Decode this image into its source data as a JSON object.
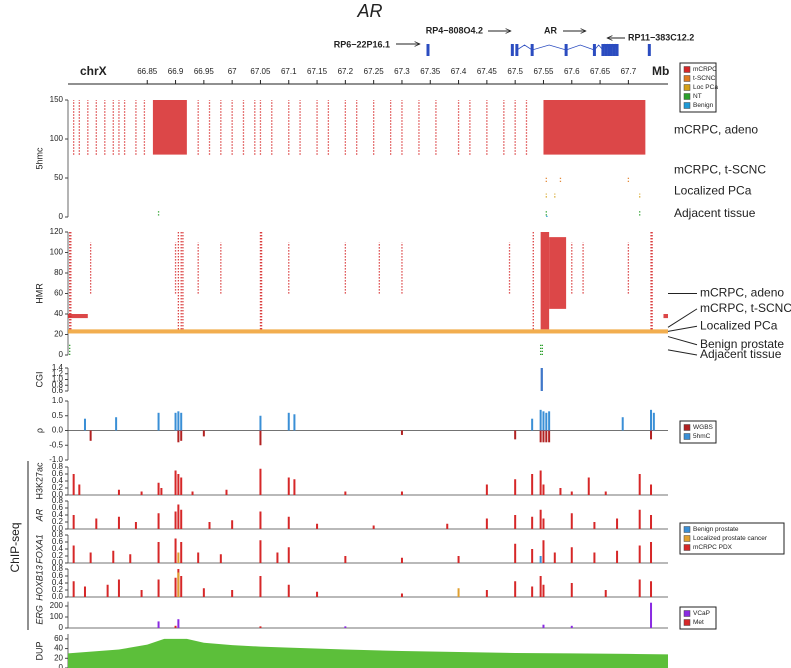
{
  "chart_data": [
    {
      "type": "gene",
      "title": "AR",
      "genes": [
        {
          "name": "RP6−22P16.1",
          "start": 67.346,
          "end": 67.349,
          "exons": [
            67.346
          ]
        },
        {
          "name": "RP4−808O4.2",
          "start": 67.495,
          "end": 67.497,
          "exons": [
            67.495
          ]
        },
        {
          "name": "AR",
          "start": 67.503,
          "end": 67.682,
          "exons": [
            67.503,
            67.53,
            67.59,
            67.64,
            67.655,
            67.66,
            67.665,
            67.67,
            67.675,
            67.68
          ]
        },
        {
          "name": "RP11−383C12.2",
          "start": 67.737,
          "end": 67.739,
          "exons": [
            67.737
          ]
        }
      ]
    },
    {
      "type": "axis",
      "chrom": "chrX",
      "unit": "Mb",
      "xlim": [
        66.71,
        67.77
      ],
      "xticks": [
        66.85,
        66.9,
        66.95,
        67,
        67.05,
        67.1,
        67.15,
        67.2,
        67.25,
        67.3,
        67.35,
        67.4,
        67.45,
        67.5,
        67.55,
        67.6,
        67.65,
        67.7
      ]
    },
    {
      "type": "raster",
      "ylabel": "5hmc",
      "ylim": [
        0,
        150
      ],
      "yticks": [
        0,
        50,
        100,
        150
      ],
      "legend": true,
      "track_labels": [
        {
          "text": "mCRPC, adeno",
          "y": 111
        },
        {
          "text": "mCRPC, t-SCNC",
          "y": 60
        },
        {
          "text": "Localized PCa",
          "y": 33
        },
        {
          "text": "Adjacent tissue",
          "y": 4
        }
      ],
      "series": [
        {
          "name": "mCRPC",
          "color": "#d62728",
          "rows": [
            80,
            150
          ],
          "x": [
            66.72,
            66.73,
            66.745,
            66.76,
            66.775,
            66.79,
            66.8,
            66.81,
            66.83,
            66.845,
            66.94,
            66.96,
            66.98,
            67.0,
            67.02,
            67.04,
            67.05,
            67.07,
            67.1,
            67.12,
            67.15,
            67.17,
            67.2,
            67.22,
            67.25,
            67.28,
            67.3,
            67.33,
            67.36,
            67.4,
            67.42,
            67.45,
            67.48,
            67.5,
            67.52,
            [
              66.86,
              66.92
            ],
            [
              67.55,
              67.73
            ]
          ]
        },
        {
          "name": "t-SCNC",
          "color": "#e07b20",
          "rows": [
            45,
            52
          ],
          "x": [
            67.555,
            67.58,
            67.7
          ]
        },
        {
          "name": "Loc PCa",
          "color": "#d4a017",
          "rows": [
            25,
            30
          ],
          "x": [
            67.555,
            67.57,
            67.72
          ]
        },
        {
          "name": "NT",
          "color": "#2ca02c",
          "rows": [
            2,
            8
          ],
          "x": [
            66.87,
            67.555,
            67.72
          ]
        },
        {
          "name": "Benign",
          "color": "#1f9ad6",
          "rows": [
            0,
            3
          ],
          "x": [
            67.556
          ]
        }
      ]
    },
    {
      "type": "raster",
      "ylabel": "HMR",
      "ylim": [
        0,
        120
      ],
      "yticks": [
        0,
        20,
        40,
        60,
        80,
        100,
        120
      ],
      "track_labels": [
        {
          "text": "mCRPC, adeno",
          "y": 60,
          "at": 60
        },
        {
          "text": "mCRPC, t-SCNC",
          "y": 45,
          "at": 27
        },
        {
          "text": "Localized PCa",
          "y": 28,
          "at": 23
        },
        {
          "text": "Benign prostate",
          "y": 10,
          "at": 18
        },
        {
          "text": "Adjacent tissue",
          "y": 0,
          "at": 5
        }
      ],
      "series": [
        {
          "color": "#d62728",
          "rows": [
            25,
            120
          ],
          "x": [
            66.713,
            66.715,
            66.905,
            66.91,
            66.913,
            67.05,
            67.052,
            67.532,
            67.74,
            67.742,
            [
              67.545,
              67.56
            ]
          ]
        },
        {
          "color": "#d62728",
          "rows": [
            60,
            110
          ],
          "x": [
            66.75,
            66.9,
            66.94,
            66.98,
            67.1,
            67.2,
            67.26,
            67.3,
            67.49,
            67.6,
            67.62,
            67.7
          ]
        },
        {
          "color": "#d62728",
          "rows": [
            45,
            115
          ],
          "x": [
            [
              67.56,
              67.59
            ]
          ]
        },
        {
          "color": "#d62728",
          "rows": [
            36,
            40
          ],
          "x": [
            [
              66.71,
              66.745
            ],
            [
              67.762,
              67.77
            ]
          ]
        },
        {
          "color": "#f0a030",
          "rows": [
            21,
            25
          ],
          "x": [
            [
              66.71,
              67.77
            ]
          ]
        },
        {
          "color": "#2ca02c",
          "rows": [
            0,
            10
          ],
          "x": [
            66.713,
            67.545,
            67.548
          ]
        }
      ]
    },
    {
      "type": "raster",
      "ylabel": "CGI",
      "ylim": [
        0.6,
        1.4
      ],
      "yticks": [
        0.6,
        0.8,
        {
          "value": 1,
          "label": "1.0"
        },
        1.2,
        1.4
      ],
      "series": [
        {
          "color": "#1f5fbf",
          "rows": [
            0.6,
            1.4
          ],
          "x": [
            [
              67.545,
              67.549
            ]
          ]
        }
      ]
    },
    {
      "type": "bar",
      "ylabel": "ρ",
      "ylim": [
        -1,
        1
      ],
      "yticks": [
        {
          "value": -1,
          "label": "-1.0"
        },
        -0.5,
        {
          "value": 0,
          "label": "0.0"
        },
        0.5,
        {
          "value": 1,
          "label": "1.0"
        }
      ],
      "legend": true,
      "series": [
        {
          "name": "WGBS",
          "color": "#b22222",
          "x": [
            66.75,
            66.905,
            66.91,
            66.95,
            67.05,
            67.3,
            67.5,
            67.545,
            67.55,
            67.555,
            67.56,
            67.74
          ],
          "values": [
            -0.35,
            -0.4,
            -0.35,
            -0.2,
            -0.5,
            -0.15,
            -0.3,
            -0.4,
            -0.4,
            -0.4,
            -0.4,
            -0.3
          ]
        },
        {
          "name": "5hmC",
          "color": "#3a8fd6",
          "x": [
            66.74,
            66.795,
            66.87,
            66.9,
            66.905,
            66.91,
            67.05,
            67.1,
            67.11,
            67.53,
            67.545,
            67.55,
            67.555,
            67.56,
            67.69,
            67.74,
            67.745
          ],
          "values": [
            0.4,
            0.45,
            0.6,
            0.6,
            0.65,
            0.6,
            0.5,
            0.6,
            0.55,
            0.4,
            0.7,
            0.65,
            0.6,
            0.65,
            0.45,
            0.7,
            0.6
          ]
        }
      ]
    },
    {
      "type": "bar",
      "ylabel": "H3K27ac",
      "group": "ChIP-seq",
      "ylim": [
        0,
        0.8
      ],
      "yticks": [
        {
          "value": 0,
          "label": "0.0"
        },
        0.2,
        0.4,
        0.6,
        0.8
      ],
      "series": [
        {
          "color": "#d62728",
          "x": [
            66.72,
            66.73,
            66.8,
            66.84,
            66.87,
            66.875,
            66.9,
            66.905,
            66.91,
            66.93,
            66.99,
            67.05,
            67.1,
            67.11,
            67.2,
            67.3,
            67.45,
            67.5,
            67.53,
            67.545,
            67.55,
            67.58,
            67.6,
            67.63,
            67.66,
            67.72,
            67.74
          ],
          "values": [
            0.6,
            0.3,
            0.15,
            0.1,
            0.35,
            0.2,
            0.7,
            0.6,
            0.5,
            0.1,
            0.15,
            0.75,
            0.5,
            0.45,
            0.1,
            0.1,
            0.3,
            0.45,
            0.6,
            0.7,
            0.3,
            0.2,
            0.1,
            0.5,
            0.1,
            0.6,
            0.3
          ]
        }
      ]
    },
    {
      "type": "bar",
      "ylabel": "AR",
      "italic": true,
      "ylim": [
        0,
        0.8
      ],
      "yticks": [
        {
          "value": 0,
          "label": "0.0"
        },
        0.2,
        0.4,
        0.6,
        0.8
      ],
      "series": [
        {
          "color": "#d62728",
          "x": [
            66.72,
            66.76,
            66.8,
            66.83,
            66.87,
            66.9,
            66.905,
            66.91,
            66.96,
            67.0,
            67.05,
            67.1,
            67.15,
            67.25,
            67.38,
            67.45,
            67.5,
            67.53,
            67.545,
            67.55,
            67.6,
            67.64,
            67.68,
            67.72,
            67.74
          ],
          "values": [
            0.4,
            0.3,
            0.35,
            0.2,
            0.45,
            0.5,
            0.7,
            0.55,
            0.2,
            0.25,
            0.5,
            0.35,
            0.15,
            0.1,
            0.15,
            0.3,
            0.4,
            0.35,
            0.55,
            0.3,
            0.45,
            0.2,
            0.3,
            0.55,
            0.4
          ]
        }
      ]
    },
    {
      "type": "bar",
      "ylabel": "FOXA1",
      "italic": true,
      "ylim": [
        0,
        0.8
      ],
      "yticks": [
        {
          "value": 0,
          "label": "0.0"
        },
        0.2,
        0.4,
        0.6,
        0.8
      ],
      "legend": true,
      "series": [
        {
          "name": "Benign prostate",
          "color": "#3a8fd6",
          "x": [
            67.545
          ],
          "values": [
            0.2
          ]
        },
        {
          "name": "Localized prostate cancer",
          "color": "#e0a030",
          "x": [
            66.905
          ],
          "values": [
            0.3
          ]
        },
        {
          "name": "mCRPC PDX",
          "color": "#d62728",
          "x": [
            66.72,
            66.75,
            66.79,
            66.82,
            66.87,
            66.9,
            66.91,
            66.94,
            66.98,
            67.05,
            67.08,
            67.1,
            67.2,
            67.3,
            67.4,
            67.5,
            67.53,
            67.55,
            67.57,
            67.6,
            67.64,
            67.68,
            67.72,
            67.74
          ],
          "values": [
            0.5,
            0.3,
            0.35,
            0.25,
            0.6,
            0.7,
            0.6,
            0.3,
            0.25,
            0.65,
            0.3,
            0.45,
            0.2,
            0.15,
            0.2,
            0.55,
            0.4,
            0.65,
            0.3,
            0.45,
            0.3,
            0.35,
            0.5,
            0.6
          ]
        }
      ]
    },
    {
      "type": "bar",
      "ylabel": "HOXB13",
      "italic": true,
      "ylim": [
        0,
        0.8
      ],
      "yticks": [
        {
          "value": 0,
          "label": "0.0"
        },
        0.2,
        0.4,
        0.6,
        0.8
      ],
      "series": [
        {
          "color": "#d62728",
          "x": [
            66.72,
            66.74,
            66.78,
            66.8,
            66.84,
            66.87,
            66.9,
            66.905,
            66.91,
            66.95,
            67.0,
            67.05,
            67.1,
            67.15,
            67.3,
            67.45,
            67.5,
            67.53,
            67.545,
            67.55,
            67.6,
            67.66,
            67.72,
            67.74
          ],
          "values": [
            0.45,
            0.3,
            0.35,
            0.5,
            0.2,
            0.5,
            0.55,
            0.8,
            0.6,
            0.25,
            0.2,
            0.6,
            0.35,
            0.15,
            0.1,
            0.2,
            0.45,
            0.3,
            0.6,
            0.35,
            0.4,
            0.2,
            0.5,
            0.45
          ]
        },
        {
          "color": "#e0a030",
          "x": [
            66.905,
            67.4
          ],
          "values": [
            0.7,
            0.25
          ]
        }
      ]
    },
    {
      "type": "bar",
      "ylabel": "ERG",
      "italic": true,
      "ylim": [
        0,
        240
      ],
      "yticks": [
        0,
        100,
        200
      ],
      "legend": true,
      "series": [
        {
          "name": "VCaP",
          "color": "#8a2be2",
          "x": [
            66.87,
            66.905,
            67.2,
            67.55,
            67.6,
            67.74
          ],
          "values": [
            60,
            80,
            15,
            30,
            20,
            230
          ]
        },
        {
          "name": "Met",
          "color": "#d62728",
          "x": [
            66.9,
            67.05
          ],
          "values": [
            20,
            15
          ]
        }
      ]
    },
    {
      "type": "area",
      "ylabel": "DUP",
      "ylim": [
        0,
        70
      ],
      "yticks": [
        0,
        20,
        40,
        60
      ],
      "series": [
        {
          "color": "#5cbf3a",
          "x": [
            66.71,
            66.8,
            66.85,
            66.88,
            66.92,
            66.95,
            67.0,
            67.05,
            67.1,
            67.2,
            67.3,
            67.4,
            67.5,
            67.6,
            67.7,
            67.77
          ],
          "values": [
            30,
            38,
            48,
            60,
            60,
            52,
            47,
            44,
            42,
            38,
            35,
            33,
            31,
            30,
            29,
            28
          ]
        }
      ]
    }
  ]
}
